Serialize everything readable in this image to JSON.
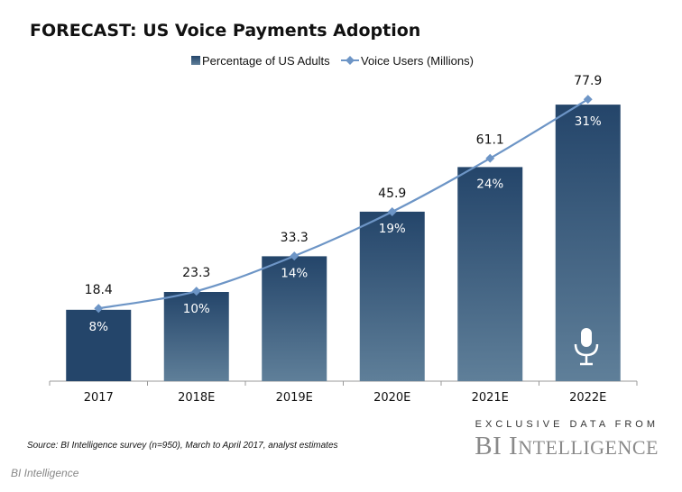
{
  "chart_data": {
    "type": "bar+line",
    "title": "FORECAST: US Voice Payments Adoption",
    "categories": [
      "2017",
      "2018E",
      "2019E",
      "2020E",
      "2021E",
      "2022E"
    ],
    "series": [
      {
        "name": "Percentage of US Adults",
        "type": "bar",
        "values": [
          8,
          10,
          14,
          19,
          24,
          31
        ],
        "labels": [
          "8%",
          "10%",
          "14%",
          "19%",
          "24%",
          "31%"
        ],
        "color": "#24456a",
        "color_light": "#5f7f99"
      },
      {
        "name": "Voice Users (Millions)",
        "type": "line",
        "values": [
          18.4,
          23.3,
          33.3,
          45.9,
          61.1,
          77.9
        ],
        "labels": [
          "18.4",
          "23.3",
          "33.3",
          "45.9",
          "61.1",
          "77.9"
        ],
        "color": "#6d95c6"
      }
    ],
    "legend": "top-center",
    "grid": false,
    "icon": "microphone-icon"
  },
  "source": "Source: BI Intelligence survey (n=950), March to April 2017, analyst estimates",
  "branding": {
    "exclusive": "EXCLUSIVE DATA FROM",
    "logo_b": "BI",
    "logo_i": "I",
    "logo_rest": "NTELLIGENCE",
    "footer": "BI Intelligence"
  }
}
